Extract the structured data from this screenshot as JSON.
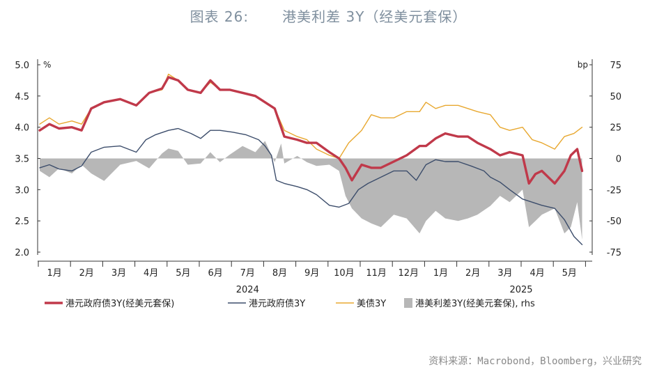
{
  "title": {
    "label": "图表 26:",
    "text": "港美利差 3Y（经美元套保）"
  },
  "source": "资料来源：Macrobond，Bloomberg，兴业研究",
  "chart_data": {
    "type": "line",
    "left_axis": {
      "unit": "%",
      "ticks": [
        "2.0",
        "2.5",
        "3.0",
        "3.5",
        "4.0",
        "4.5",
        "5.0"
      ],
      "range": [
        2.0,
        5.0
      ]
    },
    "right_axis": {
      "unit": "bp",
      "ticks": [
        "-75",
        "-50",
        "-25",
        "0",
        "25",
        "50",
        "75"
      ],
      "range": [
        -75,
        75
      ]
    },
    "x_axis": {
      "months": [
        "1月",
        "2月",
        "3月",
        "4月",
        "5月",
        "6月",
        "7月",
        "8月",
        "9月",
        "10月",
        "11月",
        "12月",
        "1月",
        "2月",
        "3月",
        "4月",
        "5月"
      ],
      "years": [
        {
          "label": "2024",
          "center_month": 6.5
        },
        {
          "label": "2025",
          "center_month": 15
        }
      ],
      "start": "2024-01",
      "end": "2025-05-20"
    },
    "legend": [
      {
        "name": "港元政府债3Y(经美元套保)",
        "style": "thick-red-line",
        "color": "#c0394a"
      },
      {
        "name": "港元政府债3Y",
        "style": "thin-navy-line",
        "color": "#3c4d6b"
      },
      {
        "name": "美债3Y",
        "style": "thin-gold-line",
        "color": "#e8a830"
      },
      {
        "name": "港美利差3Y(经美元套保), rhs",
        "style": "gray-area",
        "color": "#b7b7b7"
      }
    ],
    "colors": {
      "hedged": "#c0394a",
      "hkgb": "#3c4d6b",
      "ust": "#e8a830",
      "spread": "#b7b7b7"
    },
    "series": [
      {
        "name": "美债3Y",
        "axis": "left",
        "x": [
          0,
          0.3,
          0.6,
          1.0,
          1.3,
          1.6,
          2.0,
          2.5,
          3.0,
          3.4,
          3.8,
          4.0,
          4.3,
          4.6,
          5.0,
          5.3,
          5.6,
          5.9,
          6.3,
          6.7,
          7.0,
          7.3,
          7.6,
          8.0,
          8.3,
          8.6,
          9.0,
          9.3,
          9.6,
          10.0,
          10.3,
          10.6,
          11.0,
          11.4,
          11.8,
          12.0,
          12.3,
          12.6,
          13.0,
          13.3,
          13.6,
          14.0,
          14.3,
          14.6,
          15.0,
          15.3,
          15.6,
          16.0,
          16.3,
          16.6,
          16.85
        ],
        "y": [
          4.05,
          4.15,
          4.05,
          4.1,
          4.05,
          4.3,
          4.4,
          4.45,
          4.35,
          4.55,
          4.6,
          4.85,
          4.75,
          4.6,
          4.55,
          4.72,
          4.6,
          4.6,
          4.55,
          4.5,
          4.4,
          4.3,
          3.95,
          3.85,
          3.8,
          3.65,
          3.55,
          3.5,
          3.75,
          3.95,
          4.2,
          4.15,
          4.15,
          4.25,
          4.25,
          4.4,
          4.3,
          4.35,
          4.35,
          4.3,
          4.25,
          4.2,
          4.0,
          3.95,
          4.0,
          3.8,
          3.75,
          3.65,
          3.85,
          3.9,
          4.0
        ]
      },
      {
        "name": "港元政府债3Y",
        "axis": "left",
        "x": [
          0,
          0.3,
          0.6,
          1.0,
          1.3,
          1.6,
          2.0,
          2.5,
          3.0,
          3.3,
          3.6,
          4.0,
          4.3,
          4.7,
          5.0,
          5.3,
          5.6,
          6.0,
          6.4,
          6.8,
          7.0,
          7.2,
          7.35,
          7.6,
          8.0,
          8.3,
          8.6,
          9.0,
          9.3,
          9.6,
          9.9,
          10.2,
          10.6,
          11.0,
          11.4,
          11.7,
          12.0,
          12.3,
          12.6,
          13.0,
          13.4,
          13.8,
          14.0,
          14.3,
          14.6,
          15.0,
          15.3,
          15.6,
          16.0,
          16.3,
          16.6,
          16.85
        ],
        "y": [
          3.35,
          3.4,
          3.33,
          3.3,
          3.38,
          3.6,
          3.68,
          3.7,
          3.6,
          3.8,
          3.88,
          3.95,
          3.98,
          3.9,
          3.82,
          3.95,
          3.95,
          3.92,
          3.88,
          3.8,
          3.7,
          3.55,
          3.15,
          3.1,
          3.05,
          3.0,
          2.92,
          2.75,
          2.72,
          2.78,
          3.0,
          3.1,
          3.2,
          3.3,
          3.3,
          3.15,
          3.4,
          3.48,
          3.45,
          3.45,
          3.38,
          3.3,
          3.2,
          3.12,
          3.0,
          2.85,
          2.8,
          2.75,
          2.7,
          2.52,
          2.25,
          2.12
        ]
      },
      {
        "name": "港元政府债3Y(经美元套保)",
        "axis": "left",
        "x": [
          0,
          0.3,
          0.6,
          1.0,
          1.3,
          1.6,
          2.0,
          2.5,
          3.0,
          3.4,
          3.8,
          4.0,
          4.3,
          4.6,
          5.0,
          5.3,
          5.6,
          5.9,
          6.3,
          6.7,
          7.0,
          7.3,
          7.5,
          7.6,
          8.0,
          8.3,
          8.6,
          9.0,
          9.3,
          9.5,
          9.7,
          10.0,
          10.3,
          10.6,
          11.0,
          11.4,
          11.8,
          12.0,
          12.3,
          12.6,
          13.0,
          13.3,
          13.6,
          14.0,
          14.3,
          14.6,
          15.0,
          15.2,
          15.4,
          15.6,
          16.0,
          16.3,
          16.5,
          16.7,
          16.85
        ],
        "y": [
          3.95,
          4.05,
          3.98,
          4.0,
          3.95,
          4.3,
          4.4,
          4.45,
          4.35,
          4.55,
          4.62,
          4.8,
          4.75,
          4.6,
          4.55,
          4.75,
          4.6,
          4.6,
          4.55,
          4.5,
          4.4,
          4.3,
          4.0,
          3.85,
          3.8,
          3.75,
          3.75,
          3.6,
          3.5,
          3.35,
          3.15,
          3.4,
          3.35,
          3.35,
          3.45,
          3.55,
          3.7,
          3.7,
          3.82,
          3.9,
          3.85,
          3.85,
          3.75,
          3.65,
          3.55,
          3.6,
          3.55,
          3.1,
          3.25,
          3.3,
          3.1,
          3.3,
          3.55,
          3.65,
          3.3
        ]
      },
      {
        "name": "港美利差3Y(经美元套保), rhs",
        "axis": "right",
        "x": [
          0,
          0.3,
          0.6,
          1.0,
          1.3,
          1.6,
          2.0,
          2.5,
          3.0,
          3.4,
          3.8,
          4.0,
          4.3,
          4.6,
          5.0,
          5.3,
          5.6,
          5.9,
          6.3,
          6.7,
          7.0,
          7.3,
          7.5,
          7.6,
          8.0,
          8.3,
          8.6,
          9.0,
          9.3,
          9.5,
          9.7,
          10.0,
          10.3,
          10.6,
          11.0,
          11.4,
          11.8,
          12.0,
          12.3,
          12.6,
          13.0,
          13.3,
          13.6,
          14.0,
          14.3,
          14.6,
          15.0,
          15.2,
          15.4,
          15.6,
          16.0,
          16.3,
          16.5,
          16.7,
          16.85
        ],
        "y": [
          -10,
          -15,
          -8,
          -12,
          -5,
          -12,
          -18,
          -5,
          -2,
          -8,
          4,
          8,
          6,
          -5,
          -4,
          5,
          -3,
          3,
          10,
          5,
          14,
          -3,
          12,
          -4,
          2,
          -3,
          -6,
          -5,
          -10,
          -30,
          -40,
          -48,
          -52,
          -55,
          -45,
          -48,
          -60,
          -50,
          -42,
          -48,
          -50,
          -48,
          -45,
          -38,
          -30,
          -35,
          -25,
          -55,
          -50,
          -45,
          -40,
          -60,
          -55,
          -35,
          -65
        ]
      }
    ]
  }
}
